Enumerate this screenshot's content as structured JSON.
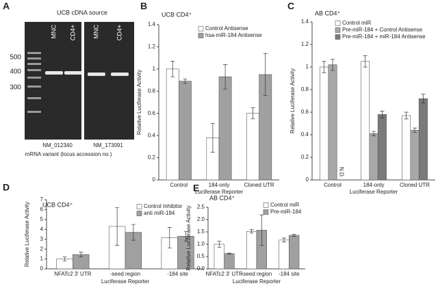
{
  "gel": {
    "panel": "A",
    "title": "UCB cDNA source",
    "lanes": [
      "MNC",
      "CD4+",
      "MNC",
      "CD4+"
    ],
    "markers": [
      "500",
      "400",
      "300"
    ],
    "accessions": [
      "NM_012340",
      "NM_173091"
    ],
    "caption": "mRNA variant (locus accession no.)"
  },
  "chart_data": [
    {
      "type": "bar",
      "panel": "B",
      "title": "UCB CD4⁺",
      "y_label": "Relative Luciferase Activity",
      "x_label": "Luciferase Reporter",
      "categories": [
        "Control",
        "184-only",
        "Cloned UTR"
      ],
      "series": [
        {
          "name": "Control Antisense",
          "color": "#ffffff",
          "values": [
            1.0,
            0.38,
            0.6
          ],
          "errors": [
            0.07,
            0.13,
            0.05
          ]
        },
        {
          "name": "hsa-miR-184 Antisense",
          "color": "#a0a0a0",
          "values": [
            0.89,
            0.93,
            0.95
          ],
          "errors": [
            0.02,
            0.11,
            0.19
          ]
        }
      ],
      "ylim": [
        0,
        1.4
      ],
      "yticks": [
        0,
        0.2,
        0.4,
        0.6,
        0.8,
        1,
        1.2,
        1.4
      ]
    },
    {
      "type": "bar",
      "panel": "C",
      "title": "AB CD4⁺",
      "x_label": "Luciferase Reporter",
      "y_label": "Relative Luciferase Activity",
      "annotation": "N.D.",
      "categories": [
        "Control",
        "184-only",
        "Cloned UTR"
      ],
      "series": [
        {
          "name": "Control miR",
          "color": "#ffffff",
          "values": [
            1.0,
            1.05,
            0.57
          ],
          "errors": [
            0.05,
            0.05,
            0.03
          ]
        },
        {
          "name": "Pre-miR-184 + Control Antisense",
          "color": "#a8a8a8",
          "values": [
            1.02,
            0.41,
            0.44
          ],
          "errors": [
            0.05,
            0.02,
            0.02
          ]
        },
        {
          "name": "Pre-miR-184 + miR-184 Antisense",
          "color": "#7a7a7a",
          "values": [
            null,
            0.58,
            0.72
          ],
          "errors": [
            null,
            0.03,
            0.04
          ]
        }
      ],
      "ylim": [
        0,
        1.4
      ],
      "yticks": [
        0,
        0.2,
        0.4,
        0.6,
        0.8,
        1,
        1.2,
        1.4
      ]
    },
    {
      "type": "bar",
      "panel": "D",
      "title": "UCB CD4⁺",
      "y_label": "Relative Luciferase Activity",
      "x_label": "Luciferase Reporter",
      "categories": [
        "NFATc2 3' UTR",
        "-seed region",
        "-184 site"
      ],
      "series": [
        {
          "name": "Control Inhibitor",
          "color": "#ffffff",
          "values": [
            1.0,
            4.3,
            3.15
          ],
          "errors": [
            0.2,
            1.9,
            1.05
          ]
        },
        {
          "name": "anti miR-184",
          "color": "#a0a0a0",
          "values": [
            1.45,
            3.7,
            3.3
          ],
          "errors": [
            0.25,
            0.8,
            0.5
          ]
        }
      ],
      "ylim": [
        0,
        7
      ],
      "yticks": [
        0,
        1,
        2,
        3,
        4,
        5,
        6,
        7
      ]
    },
    {
      "type": "bar",
      "panel": "E",
      "title": "AB CD4⁺",
      "y_label": "Relative Luciferase Activity",
      "x_label": "Luciferase Reporter",
      "categories": [
        "NFATc2 3' UTR",
        "-seed region",
        "-184 site"
      ],
      "series": [
        {
          "name": "Control miR",
          "color": "#ffffff",
          "values": [
            1.0,
            1.52,
            1.17
          ],
          "errors": [
            0.13,
            0.07,
            0.08
          ]
        },
        {
          "name": "Pre-miR-184",
          "color": "#a0a0a0",
          "values": [
            0.62,
            1.57,
            1.36
          ],
          "errors": [
            0.02,
            0.62,
            0.04
          ]
        }
      ],
      "ylim": [
        0,
        2.5
      ],
      "yticks": [
        {
          "value": 0,
          "label": "0.0"
        },
        0.5,
        {
          "value": 1,
          "label": "1.0"
        },
        1.5,
        {
          "value": 2,
          "label": "2.0"
        },
        2.5
      ]
    }
  ]
}
